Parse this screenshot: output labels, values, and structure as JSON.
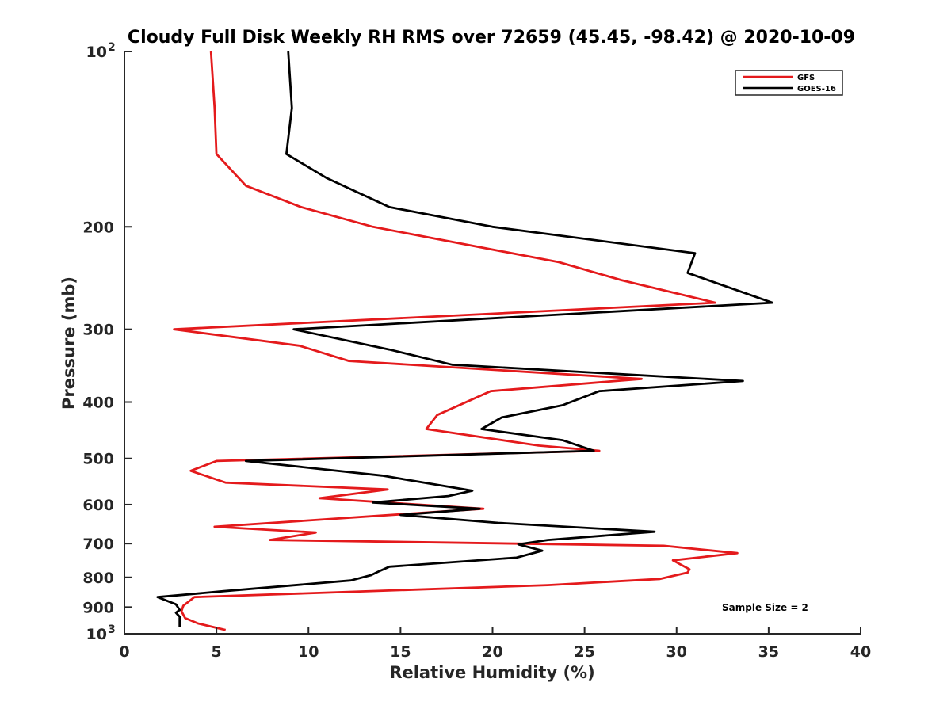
{
  "chart_data": {
    "type": "line",
    "title": "Cloudy Full Disk Weekly RH RMS over 72659 (45.45, -98.42) @ 2020-10-09",
    "xlabel": "Relative Humidity (%)",
    "ylabel": "Pressure (mb)",
    "xlim": [
      0,
      40
    ],
    "ylim": [
      100,
      1000
    ],
    "y_scale": "log",
    "y_reversed": true,
    "x_ticks": [
      "0",
      "5",
      "10",
      "15",
      "20",
      "25",
      "30",
      "35",
      "40"
    ],
    "y_ticks": [
      {
        "value": 100,
        "base": "10",
        "exp": "2",
        "label": ""
      },
      {
        "value": 200,
        "label": "200"
      },
      {
        "value": 300,
        "label": "300"
      },
      {
        "value": 400,
        "label": "400"
      },
      {
        "value": 500,
        "label": "500"
      },
      {
        "value": 600,
        "label": "600"
      },
      {
        "value": 700,
        "label": "700"
      },
      {
        "value": 800,
        "label": "800"
      },
      {
        "value": 900,
        "label": "900"
      },
      {
        "value": 1000,
        "base": "10",
        "exp": "3",
        "label": ""
      }
    ],
    "legend_position": "top-right",
    "annotation": "Sample Size = 2",
    "series": [
      {
        "name": "GFS",
        "color": "#e41a1c",
        "points": [
          [
            4.7,
            100
          ],
          [
            4.9,
            125
          ],
          [
            5.0,
            150
          ],
          [
            6.6,
            170
          ],
          [
            9.6,
            185
          ],
          [
            13.5,
            200
          ],
          [
            23.6,
            230
          ],
          [
            27.0,
            247
          ],
          [
            32.1,
            270
          ],
          [
            2.7,
            300
          ],
          [
            9.5,
            320
          ],
          [
            12.2,
            340
          ],
          [
            28.1,
            365
          ],
          [
            19.9,
            383
          ],
          [
            17.0,
            421
          ],
          [
            16.4,
            445
          ],
          [
            22.5,
            475
          ],
          [
            25.8,
            485
          ],
          [
            5.0,
            505
          ],
          [
            3.6,
            525
          ],
          [
            5.5,
            550
          ],
          [
            14.3,
            565
          ],
          [
            10.6,
            585
          ],
          [
            19.5,
            610
          ],
          [
            4.9,
            655
          ],
          [
            10.4,
            670
          ],
          [
            7.9,
            690
          ],
          [
            29.3,
            706
          ],
          [
            33.3,
            727
          ],
          [
            29.8,
            748
          ],
          [
            30.7,
            775
          ],
          [
            30.6,
            785
          ],
          [
            29.1,
            805
          ],
          [
            23.0,
            825
          ],
          [
            3.8,
            865
          ],
          [
            3.2,
            895
          ],
          [
            3.1,
            915
          ],
          [
            3.3,
            940
          ],
          [
            4.0,
            960
          ],
          [
            5.5,
            985
          ]
        ]
      },
      {
        "name": "GOES-16",
        "color": "#000000",
        "points": [
          [
            8.9,
            100
          ],
          [
            9.1,
            125
          ],
          [
            8.8,
            150
          ],
          [
            11.0,
            165
          ],
          [
            14.4,
            185
          ],
          [
            20.0,
            200
          ],
          [
            31.0,
            222
          ],
          [
            30.6,
            240
          ],
          [
            35.2,
            270
          ],
          [
            9.2,
            300
          ],
          [
            14.4,
            325
          ],
          [
            17.8,
            345
          ],
          [
            33.6,
            368
          ],
          [
            25.8,
            383
          ],
          [
            23.8,
            405
          ],
          [
            20.5,
            425
          ],
          [
            19.4,
            445
          ],
          [
            23.8,
            465
          ],
          [
            25.5,
            485
          ],
          [
            6.6,
            505
          ],
          [
            14.0,
            535
          ],
          [
            18.9,
            568
          ],
          [
            17.6,
            580
          ],
          [
            13.5,
            595
          ],
          [
            19.3,
            610
          ],
          [
            15.0,
            625
          ],
          [
            20.3,
            645
          ],
          [
            28.8,
            668
          ],
          [
            23.0,
            690
          ],
          [
            21.4,
            702
          ],
          [
            22.7,
            720
          ],
          [
            21.3,
            740
          ],
          [
            14.4,
            767
          ],
          [
            13.8,
            782
          ],
          [
            13.4,
            793
          ],
          [
            12.3,
            810
          ],
          [
            5.4,
            845
          ],
          [
            1.8,
            865
          ],
          [
            2.8,
            890
          ],
          [
            3.0,
            910
          ],
          [
            2.8,
            920
          ],
          [
            3.0,
            935
          ],
          [
            3.0,
            975
          ]
        ]
      }
    ]
  }
}
